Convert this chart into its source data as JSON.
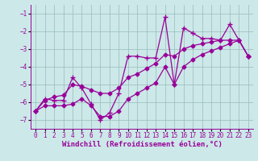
{
  "x": [
    0,
    1,
    2,
    3,
    4,
    5,
    6,
    7,
    8,
    9,
    10,
    11,
    12,
    13,
    14,
    15,
    16,
    17,
    18,
    19,
    20,
    21,
    22,
    23
  ],
  "y_line1": [
    -6.5,
    -5.8,
    -5.9,
    -5.9,
    -4.6,
    -5.2,
    -6.1,
    -7.0,
    -6.6,
    -5.5,
    -3.4,
    -3.4,
    -3.5,
    -3.5,
    -1.2,
    -5.0,
    -1.8,
    -2.1,
    -2.4,
    -2.4,
    -2.5,
    -1.6,
    -2.5,
    -3.4
  ],
  "y_line2": [
    -6.5,
    -5.9,
    -5.7,
    -5.6,
    -5.0,
    -5.1,
    -5.3,
    -5.5,
    -5.5,
    -5.2,
    -4.6,
    -4.4,
    -4.1,
    -3.8,
    -3.3,
    -3.4,
    -3.0,
    -2.8,
    -2.7,
    -2.6,
    -2.5,
    -2.5,
    -2.5,
    -3.4
  ],
  "y_line3": [
    -6.5,
    -6.2,
    -6.2,
    -6.2,
    -6.1,
    -5.8,
    -6.2,
    -6.8,
    -6.8,
    -6.5,
    -5.8,
    -5.5,
    -5.2,
    -4.9,
    -4.0,
    -5.0,
    -4.0,
    -3.6,
    -3.3,
    -3.1,
    -2.9,
    -2.7,
    -2.5,
    -3.4
  ],
  "color": "#990099",
  "bg_color": "#cce8e8",
  "grid_color": "#99bbbb",
  "xlabel": "Windchill (Refroidissement éolien,°C)",
  "xlim": [
    -0.5,
    23.5
  ],
  "ylim": [
    -7.5,
    -0.5
  ],
  "yticks": [
    -7,
    -6,
    -5,
    -4,
    -3,
    -2,
    -1
  ],
  "xticks": [
    0,
    1,
    2,
    3,
    4,
    5,
    6,
    7,
    8,
    9,
    10,
    11,
    12,
    13,
    14,
    15,
    16,
    17,
    18,
    19,
    20,
    21,
    22,
    23
  ],
  "tick_fontsize": 5.5,
  "xlabel_fontsize": 6.5,
  "linewidth": 0.9,
  "markersize_cross": 5,
  "markersize_dot": 2.5
}
